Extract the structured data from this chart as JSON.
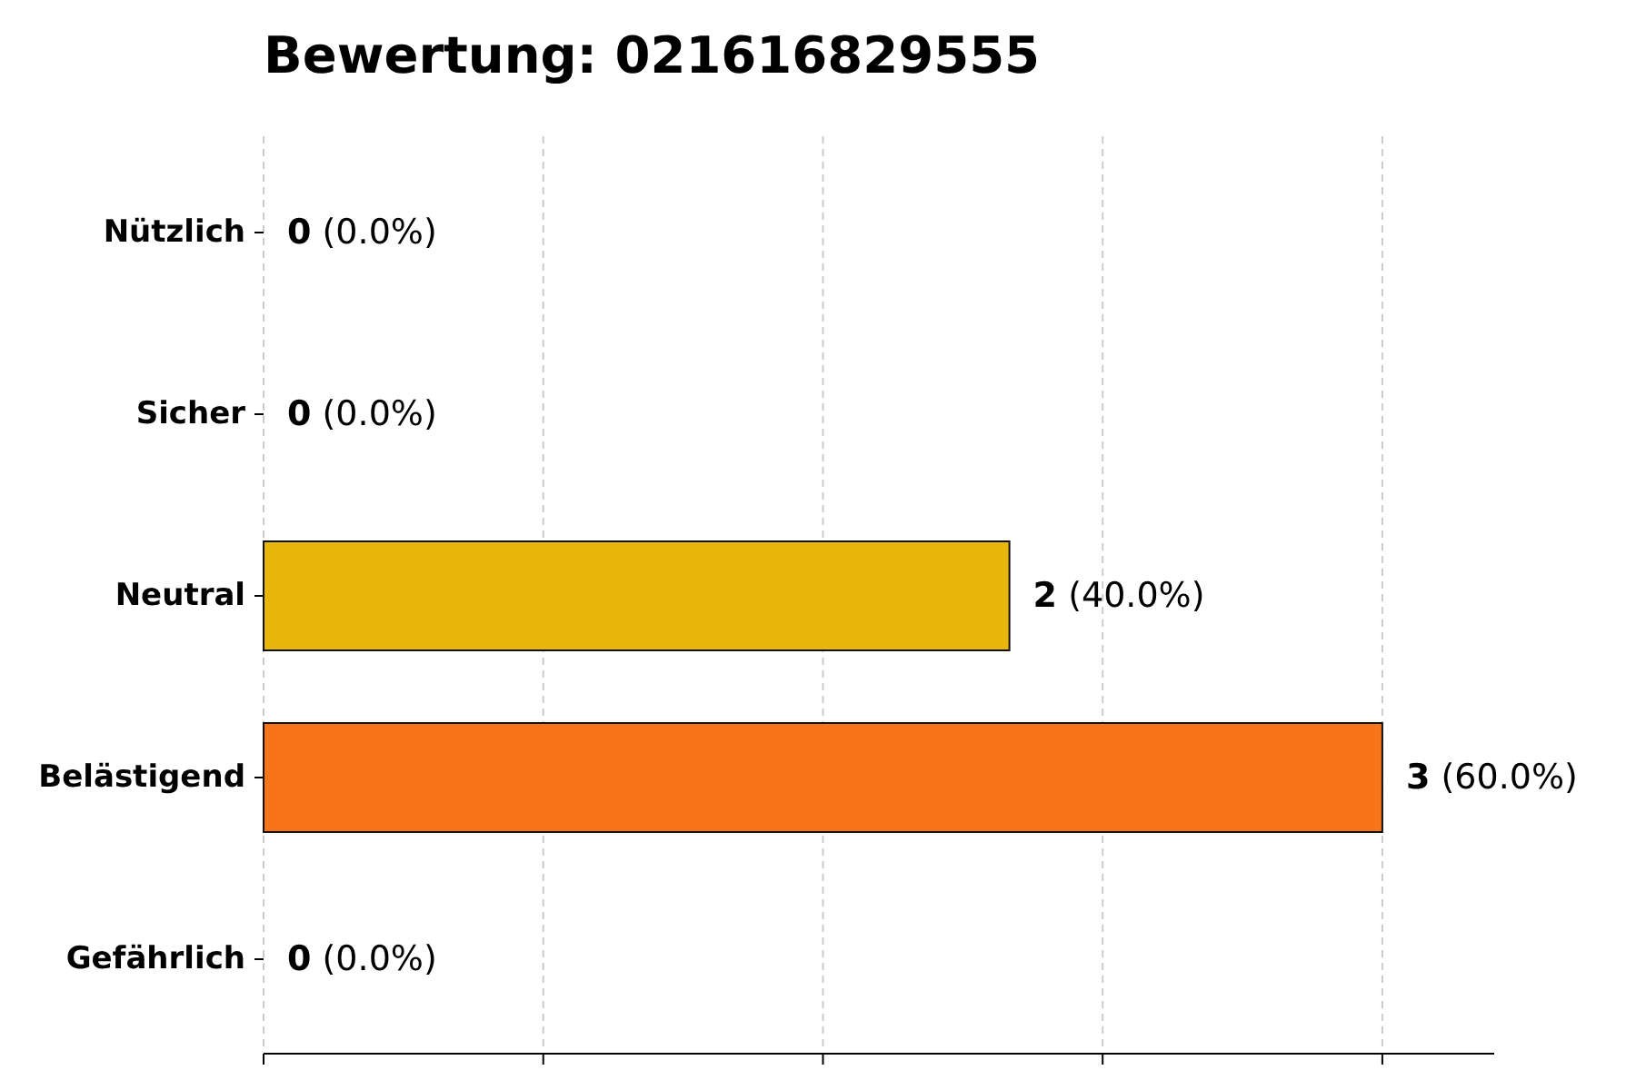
{
  "chart_data": {
    "type": "bar",
    "orientation": "horizontal",
    "title": "Bewertung: 021616829555",
    "categories": [
      "Nützlich",
      "Sicher",
      "Neutral",
      "Belästigend",
      "Gefährlich"
    ],
    "values": [
      0,
      0,
      2,
      3,
      0
    ],
    "colors": [
      "#2ca02c",
      "#1f77b4",
      "#e8b50a",
      "#f77518",
      "#d62728"
    ],
    "value_labels": [
      "0 (0.0%)",
      "0 (0.0%)",
      "2 (40.0%)",
      "3 (60.0%)",
      "0 (0.0%)"
    ],
    "xlim": [
      0,
      3.3
    ],
    "xticks": [
      {
        "value": 0,
        "label": null
      },
      {
        "value": 0.75,
        "label": null
      },
      {
        "value": 1.5,
        "label": null
      },
      {
        "value": 2.25,
        "label": null
      },
      {
        "value": 3,
        "label": null
      }
    ],
    "tick_labels": "y",
    "grid": "x"
  }
}
